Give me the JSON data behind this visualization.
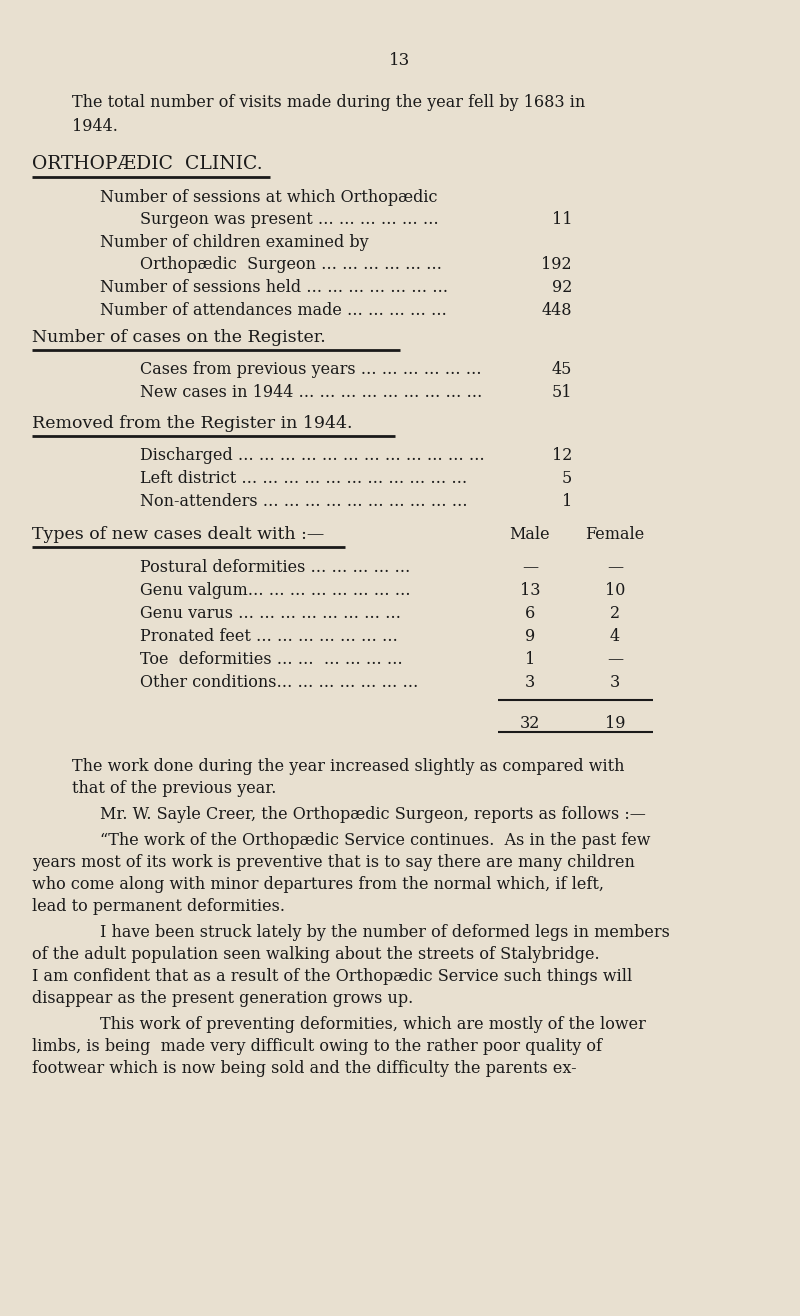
{
  "bg_color": "#e8e0d0",
  "text_color": "#1a1a1a",
  "page_number": "13",
  "intro_line1": "The total number of visits made during the year fell by 1683 in",
  "intro_line2": "1944.",
  "section_title": "ORTHOPÆDIC  CLINIC.",
  "clinic_rows": [
    {
      "text": "Number of sessions at which Orthopædic",
      "value": "",
      "level": 1
    },
    {
      "text": "Surgeon was present … … … … … …",
      "value": "11",
      "level": 2
    },
    {
      "text": "Number of children examined by",
      "value": "",
      "level": 1
    },
    {
      "text": "Orthopædic  Surgeon … … … … … …",
      "value": "192",
      "level": 2
    },
    {
      "text": "Number of sessions held … … … … … … …",
      "value": "92",
      "level": 1
    },
    {
      "text": "Number of attendances made … … … … …",
      "value": "448",
      "level": 1
    }
  ],
  "section2_title": "Number of cases on the Register.",
  "register_rows": [
    {
      "text": "Cases from previous years … … … … … …",
      "value": "45"
    },
    {
      "text": "New cases in 1944 … … … … … … … … …",
      "value": "51"
    }
  ],
  "section3_title": "Removed from the Register in 1944.",
  "removed_rows": [
    {
      "text": "Discharged … … … … … … … … … … … …",
      "value": "12"
    },
    {
      "text": "Left district … … … … … … … … … … …",
      "value": "5"
    },
    {
      "text": "Non-attenders … … … … … … … … … …",
      "value": "1"
    }
  ],
  "section4_title": "Types of new cases dealt with :—",
  "col_male": "Male",
  "col_female": "Female",
  "types_rows": [
    {
      "text": "Postural deformities … … … … …",
      "male": "—",
      "female": "—"
    },
    {
      "text": "Genu valgum… … … … … … … …",
      "male": "13",
      "female": "10"
    },
    {
      "text": "Genu varus … … … … … … … …",
      "male": "6",
      "female": "2"
    },
    {
      "text": "Pronated feet … … … … … … …",
      "male": "9",
      "female": "4"
    },
    {
      "text": "Toe  deformities … …  … … … …",
      "male": "1",
      "female": "—"
    },
    {
      "text": "Other conditions… … … … … … …",
      "male": "3",
      "female": "3"
    }
  ],
  "total_male": "32",
  "total_female": "19",
  "para1_l1": "The work done during the year increased slightly as compared with",
  "para1_l2": "that of the previous year.",
  "para2_l1": "Mr. W. Sayle Creer, the Orthopædic Surgeon, reports as follows :—",
  "para3_l1": "“The work of the Orthopædic Service continues.  As in the past few",
  "para3_l2": "years most of its work is preventive that is to say there are many children",
  "para3_l3": "who come along with minor departures from the normal which, if left,",
  "para3_l4": "lead to permanent deformities.",
  "para4_l1": "I have been struck lately by the number of deformed legs in members",
  "para4_l2": "of the adult population seen walking about the streets of Stalybridge.",
  "para4_l3": "I am confident that as a result of the Orthopædic Service such things will",
  "para4_l4": "disappear as the present generation grows up.",
  "para5_l1": "This work of preventing deformities, which are mostly of the lower",
  "para5_l2": "limbs, is being  made very difficult owing to the rather poor quality of",
  "para5_l3": "footwear which is now being sold and the difficulty the parents ex-"
}
